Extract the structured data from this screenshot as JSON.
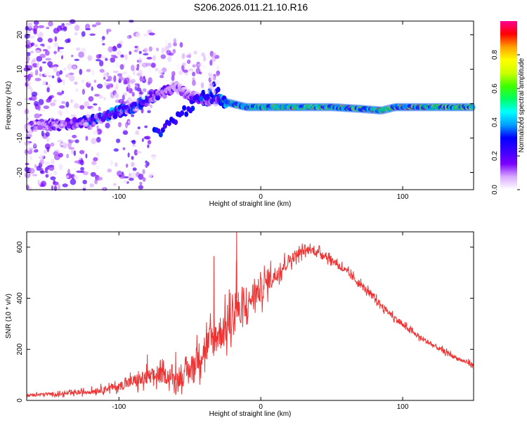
{
  "title": "S206.2026.011.21.10.R16",
  "chart_data": [
    {
      "type": "heatmap",
      "name": "spectrogram",
      "xlabel": "Height of straight line (km)",
      "ylabel": "Frequency (Hz)",
      "xlim": [
        -165,
        150
      ],
      "ylim": [
        -25,
        24
      ],
      "xticks": [
        -100,
        0,
        100
      ],
      "yticks": [
        -20,
        -10,
        0,
        10,
        20
      ],
      "colorbar": {
        "label": "Normalized spectral amplitude",
        "range": [
          0,
          1
        ],
        "ticks": [
          "0.0",
          "0.2",
          "0.4",
          "0.6",
          "0.8"
        ],
        "tick_values": [
          0.0,
          0.2,
          0.4,
          0.6,
          0.8
        ],
        "colors": [
          "#ffffff",
          "#d9a9ff",
          "#7a00ff",
          "#3a00ff",
          "#0000ff",
          "#00a0ff",
          "#00ffff",
          "#00ff60",
          "#40ff00",
          "#ccff00",
          "#ffff00",
          "#ffa000",
          "#ff0000",
          "#ff0090"
        ]
      },
      "ridge": {
        "description": "dominant frequency trace",
        "x": [
          -165,
          -150,
          -135,
          -120,
          -105,
          -90,
          -80,
          -70,
          -60,
          -50,
          -40,
          -30,
          -20,
          -10,
          0,
          10,
          30,
          50,
          70,
          85,
          95,
          110,
          130,
          150
        ],
        "y": [
          -7,
          -6,
          -6,
          -5,
          -3,
          -1,
          1,
          3,
          5,
          2,
          1,
          1,
          0,
          -1,
          -1,
          -1,
          -1,
          -1,
          -1.5,
          -2,
          -1,
          -1,
          -1,
          -1
        ],
        "amplitude": [
          0.15,
          0.25,
          0.3,
          0.4,
          0.45,
          0.5,
          0.45,
          0.3,
          0.2,
          0.3,
          0.35,
          0.45,
          0.85,
          0.9,
          0.9,
          0.95,
          0.95,
          0.95,
          0.95,
          0.95,
          0.95,
          0.95,
          0.95,
          0.95
        ]
      }
    },
    {
      "type": "line",
      "name": "snr",
      "xlabel": "Height of straight line (km)",
      "ylabel": "SNR (10 * v/v)",
      "xlim": [
        -165,
        150
      ],
      "ylim": [
        0,
        660
      ],
      "xticks": [
        -100,
        0,
        100
      ],
      "yticks": [
        0,
        200,
        400,
        600
      ],
      "color": "#ee3333",
      "series": [
        {
          "name": "SNR envelope",
          "x": [
            -165,
            -150,
            -140,
            -130,
            -120,
            -110,
            -100,
            -95,
            -90,
            -85,
            -80,
            -75,
            -70,
            -65,
            -60,
            -55,
            -50,
            -45,
            -40,
            -35,
            -30,
            -25,
            -20,
            -17,
            -15,
            -10,
            -5,
            0,
            5,
            10,
            15,
            20,
            25,
            30,
            35,
            40,
            45,
            50,
            55,
            60,
            70,
            80,
            90,
            100,
            110,
            120,
            130,
            140,
            150
          ],
          "y": [
            20,
            25,
            25,
            30,
            35,
            45,
            55,
            65,
            75,
            80,
            90,
            95,
            100,
            95,
            80,
            90,
            120,
            160,
            200,
            230,
            260,
            280,
            320,
            400,
            330,
            360,
            420,
            430,
            470,
            490,
            520,
            550,
            570,
            585,
            590,
            580,
            570,
            550,
            530,
            505,
            455,
            400,
            345,
            295,
            255,
            220,
            190,
            160,
            140
          ],
          "spread": [
            10,
            12,
            14,
            16,
            20,
            25,
            30,
            40,
            50,
            60,
            60,
            65,
            65,
            60,
            60,
            70,
            80,
            110,
            130,
            140,
            140,
            140,
            150,
            240,
            130,
            110,
            100,
            100,
            90,
            70,
            60,
            50,
            40,
            35,
            30,
            30,
            30,
            30,
            30,
            30,
            28,
            26,
            24,
            22,
            20,
            20,
            18,
            16,
            16
          ],
          "peaks": [
            {
              "x": -17,
              "y": 660
            },
            {
              "x": -33,
              "y": 565
            },
            {
              "x": -60,
              "y": 190
            },
            {
              "x": -80,
              "y": 180
            }
          ]
        }
      ]
    }
  ]
}
